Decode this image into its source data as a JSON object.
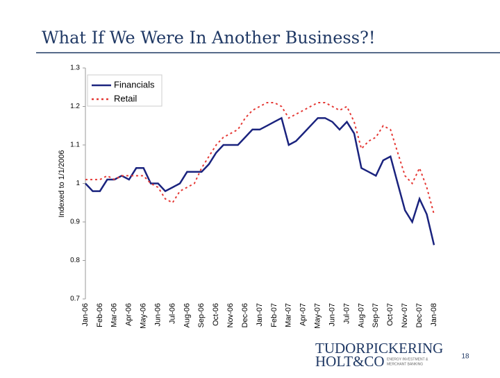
{
  "chart_data": {
    "type": "line",
    "title": "What If We Were In Another Business?!",
    "y_label": "Indexed to 1/1/2006",
    "categories": [
      "Jan-06",
      null,
      "Feb-06",
      null,
      "Mar-06",
      null,
      "Apr-06",
      null,
      "May-06",
      null,
      "Jun-06",
      null,
      "Jul-06",
      null,
      "Aug-06",
      null,
      "Sep-06",
      null,
      "Oct-06",
      null,
      "Nov-06",
      null,
      "Dec-06",
      null,
      "Jan-07",
      null,
      "Feb-07",
      null,
      "Mar-07",
      null,
      "Apr-07",
      null,
      "May-07",
      null,
      "Jun-07",
      null,
      "Jul-07",
      null,
      "Aug-07",
      null,
      "Sep-07",
      null,
      "Oct-07",
      null,
      "Nov-07",
      null,
      "Dec-07",
      null,
      "Jan-08"
    ],
    "series": [
      {
        "name": "Financials",
        "color": "#1a237e",
        "dash": "solid",
        "values": [
          1.0,
          0.98,
          0.98,
          1.01,
          1.01,
          1.02,
          1.01,
          1.04,
          1.04,
          1.0,
          1.0,
          0.98,
          0.99,
          1.0,
          1.03,
          1.03,
          1.03,
          1.05,
          1.08,
          1.1,
          1.1,
          1.1,
          1.12,
          1.14,
          1.14,
          1.15,
          1.16,
          1.17,
          1.1,
          1.11,
          1.13,
          1.15,
          1.17,
          1.17,
          1.16,
          1.14,
          1.16,
          1.13,
          1.04,
          1.03,
          1.02,
          1.06,
          1.07,
          1.0,
          0.93,
          0.9,
          0.96,
          0.92,
          0.84
        ]
      },
      {
        "name": "Retail",
        "color": "#e53935",
        "dash": "dotted",
        "values": [
          1.01,
          1.01,
          1.01,
          1.02,
          1.01,
          1.02,
          1.02,
          1.02,
          1.02,
          1.0,
          0.99,
          0.96,
          0.95,
          0.98,
          0.99,
          1.0,
          1.04,
          1.07,
          1.1,
          1.12,
          1.13,
          1.14,
          1.17,
          1.19,
          1.2,
          1.21,
          1.21,
          1.2,
          1.17,
          1.18,
          1.19,
          1.2,
          1.21,
          1.21,
          1.2,
          1.19,
          1.2,
          1.16,
          1.09,
          1.11,
          1.12,
          1.15,
          1.14,
          1.08,
          1.02,
          1.0,
          1.04,
          0.99,
          0.92
        ]
      }
    ],
    "ylim": [
      0.7,
      1.3
    ],
    "yticks": [
      0.7,
      0.8,
      0.9,
      1,
      1.1,
      1.2,
      1.3
    ],
    "legend": "upper-left",
    "grid": false
  },
  "footer": {
    "page_number": "18",
    "logo_line1": "TUDORPICKERING",
    "logo_line2": "HOLT&CO",
    "logo_tag1": "ENERGY INVESTMENT &",
    "logo_tag2": "MERCHANT BANKING"
  }
}
